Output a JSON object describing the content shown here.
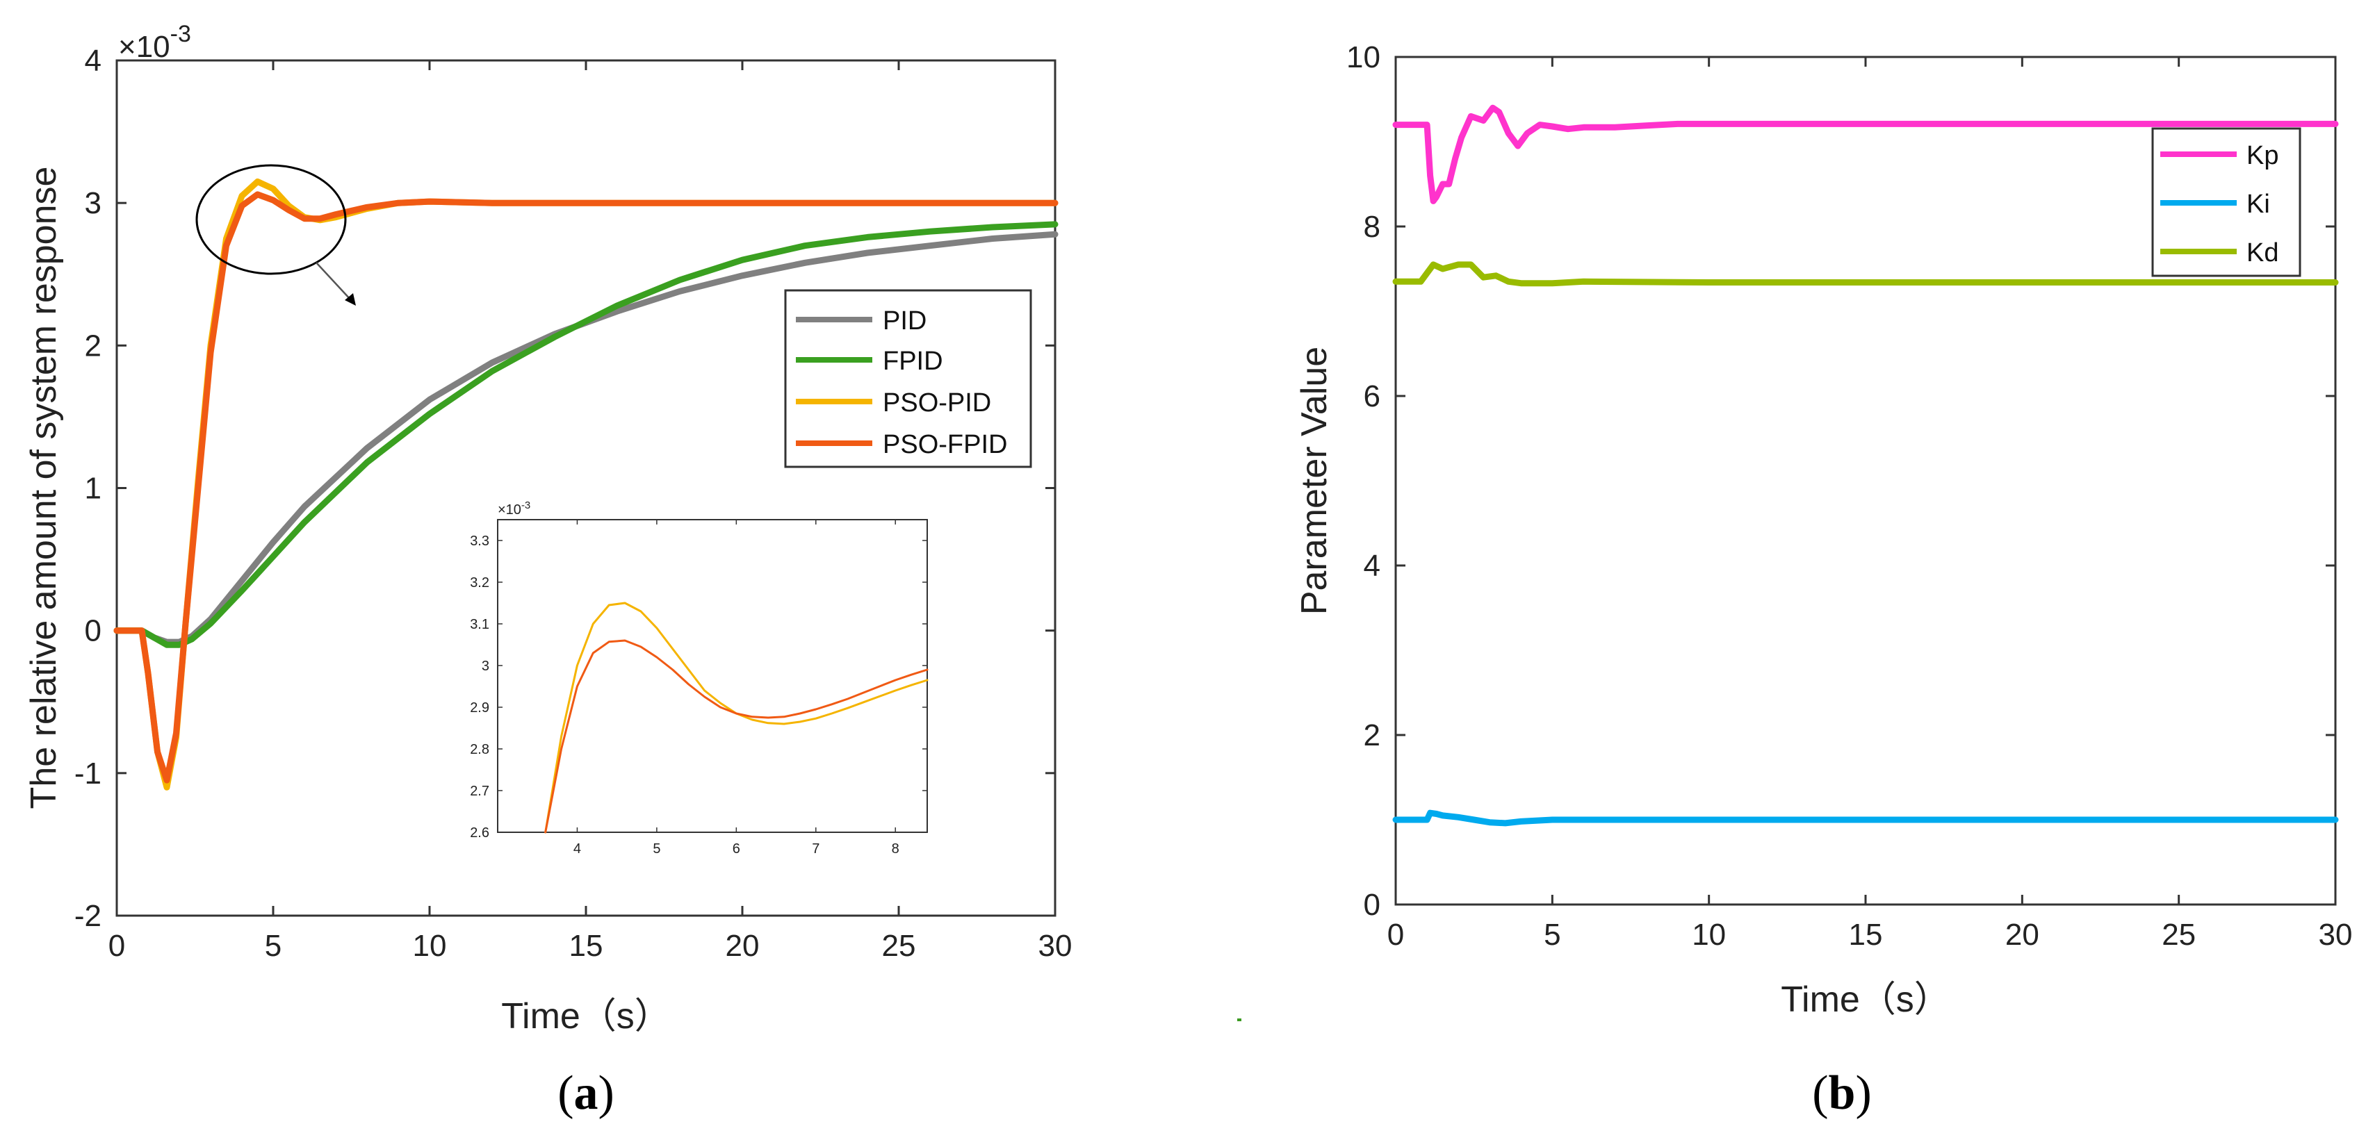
{
  "captions": {
    "a": "a",
    "b": "b"
  },
  "chart_data": [
    {
      "type": "line",
      "panel": "a",
      "xlabel": "Time（s）",
      "ylabel": "The relative amount of system response",
      "exponent_label": "×10",
      "exponent_power": "-3",
      "xlim": [
        0,
        30
      ],
      "ylim": [
        -2,
        4
      ],
      "xticks": [
        0,
        5,
        10,
        15,
        20,
        25,
        30
      ],
      "yticks": [
        -2,
        -1,
        0,
        1,
        2,
        3,
        4
      ],
      "legend": [
        "PID",
        "FPID",
        "PSO-PID",
        "PSO-FPID"
      ],
      "series": [
        {
          "name": "PID",
          "color": "#808080",
          "x": [
            0,
            0.8,
            1.2,
            1.6,
            2.0,
            2.4,
            3,
            4,
            5,
            6,
            8,
            10,
            12,
            14,
            16,
            18,
            20,
            22,
            24,
            26,
            28,
            30
          ],
          "y": [
            0,
            0,
            -0.05,
            -0.08,
            -0.08,
            -0.04,
            0.08,
            0.35,
            0.62,
            0.87,
            1.28,
            1.62,
            1.88,
            2.08,
            2.24,
            2.38,
            2.49,
            2.58,
            2.65,
            2.7,
            2.75,
            2.78
          ]
        },
        {
          "name": "FPID",
          "color": "#3aa020",
          "x": [
            0,
            0.8,
            1.2,
            1.6,
            2.0,
            2.4,
            3,
            4,
            5,
            6,
            8,
            10,
            12,
            14,
            16,
            18,
            20,
            22,
            24,
            26,
            28,
            30
          ],
          "y": [
            0,
            0,
            -0.05,
            -0.1,
            -0.1,
            -0.06,
            0.05,
            0.28,
            0.52,
            0.76,
            1.18,
            1.52,
            1.82,
            2.06,
            2.28,
            2.46,
            2.6,
            2.7,
            2.76,
            2.8,
            2.83,
            2.85
          ]
        },
        {
          "name": "PSO-PID",
          "color": "#f5b400",
          "x": [
            0,
            0.8,
            1.0,
            1.3,
            1.6,
            1.9,
            2.2,
            2.6,
            3.0,
            3.5,
            4.0,
            4.5,
            5.0,
            5.5,
            6.0,
            6.5,
            7.0,
            8.0,
            9.0,
            10,
            12,
            15,
            20,
            25,
            30
          ],
          "y": [
            0,
            0,
            -0.3,
            -0.85,
            -1.1,
            -0.75,
            0.05,
            1.05,
            2.0,
            2.75,
            3.05,
            3.15,
            3.1,
            2.98,
            2.9,
            2.88,
            2.9,
            2.96,
            3.0,
            3.01,
            3.0,
            3.0,
            3.0,
            3.0,
            3.0
          ]
        },
        {
          "name": "PSO-FPID",
          "color": "#f05a14",
          "x": [
            0,
            0.8,
            1.0,
            1.3,
            1.6,
            1.9,
            2.2,
            2.6,
            3.0,
            3.5,
            4.0,
            4.5,
            5.0,
            5.5,
            6.0,
            6.5,
            7.0,
            8.0,
            9.0,
            10,
            12,
            15,
            20,
            25,
            30
          ],
          "y": [
            0,
            0,
            -0.3,
            -0.85,
            -1.05,
            -0.72,
            0.05,
            1.0,
            1.95,
            2.7,
            2.98,
            3.06,
            3.02,
            2.95,
            2.89,
            2.89,
            2.92,
            2.97,
            3.0,
            3.01,
            3.0,
            3.0,
            3.0,
            3.0,
            3.0
          ]
        }
      ],
      "inset": {
        "exponent_label": "×10",
        "exponent_power": "-3",
        "xlim": [
          3.0,
          8.4
        ],
        "ylim": [
          2.6,
          3.35
        ],
        "xticks": [
          4,
          5,
          6,
          7,
          8
        ],
        "yticks": [
          2.6,
          2.7,
          2.8,
          2.9,
          3.0,
          3.1,
          3.2,
          3.3
        ],
        "ytick_labels": [
          "2.6",
          "2.7",
          "2.8",
          "2.9",
          "3",
          "3.1",
          "3.2",
          "3.3"
        ],
        "series": [
          {
            "name": "PSO-PID",
            "color": "#f5b400",
            "x": [
              3.6,
              3.8,
              4.0,
              4.2,
              4.4,
              4.6,
              4.8,
              5.0,
              5.2,
              5.4,
              5.6,
              5.8,
              6.0,
              6.2,
              6.4,
              6.6,
              6.8,
              7.0,
              7.2,
              7.4,
              7.6,
              7.8,
              8.0,
              8.2,
              8.4
            ],
            "y": [
              2.6,
              2.83,
              3.0,
              3.1,
              3.145,
              3.15,
              3.13,
              3.09,
              3.04,
              2.99,
              2.94,
              2.91,
              2.885,
              2.87,
              2.862,
              2.86,
              2.865,
              2.873,
              2.885,
              2.898,
              2.912,
              2.926,
              2.94,
              2.953,
              2.965
            ]
          },
          {
            "name": "PSO-FPID",
            "color": "#f05a14",
            "x": [
              3.6,
              3.8,
              4.0,
              4.2,
              4.4,
              4.6,
              4.8,
              5.0,
              5.2,
              5.4,
              5.6,
              5.8,
              6.0,
              6.2,
              6.4,
              6.6,
              6.8,
              7.0,
              7.2,
              7.4,
              7.6,
              7.8,
              8.0,
              8.2,
              8.4
            ],
            "y": [
              2.6,
              2.8,
              2.95,
              3.03,
              3.057,
              3.06,
              3.045,
              3.02,
              2.99,
              2.955,
              2.925,
              2.9,
              2.885,
              2.877,
              2.875,
              2.877,
              2.885,
              2.895,
              2.907,
              2.92,
              2.935,
              2.95,
              2.965,
              2.978,
              2.99
            ]
          }
        ]
      }
    },
    {
      "type": "line",
      "panel": "b",
      "xlabel": "Time（s）",
      "ylabel": "Parameter Value",
      "xlim": [
        0,
        30
      ],
      "ylim": [
        0,
        10
      ],
      "xticks": [
        0,
        5,
        10,
        15,
        20,
        25,
        30
      ],
      "yticks": [
        0,
        2,
        4,
        6,
        8,
        10
      ],
      "legend": [
        "Kp",
        "Ki",
        "Kd"
      ],
      "series": [
        {
          "name": "Kp",
          "color": "#ff33cc",
          "x": [
            0,
            1.0,
            1.1,
            1.2,
            1.3,
            1.5,
            1.7,
            1.9,
            2.1,
            2.4,
            2.8,
            3.1,
            3.3,
            3.6,
            3.9,
            4.2,
            4.6,
            5.0,
            5.5,
            6,
            7,
            8,
            9,
            10,
            15,
            20,
            25,
            30
          ],
          "y": [
            9.2,
            9.2,
            8.6,
            8.3,
            8.35,
            8.5,
            8.5,
            8.8,
            9.05,
            9.3,
            9.25,
            9.4,
            9.35,
            9.1,
            8.95,
            9.1,
            9.2,
            9.18,
            9.15,
            9.17,
            9.17,
            9.19,
            9.21,
            9.21,
            9.21,
            9.21,
            9.21,
            9.21
          ]
        },
        {
          "name": "Ki",
          "color": "#00aaee",
          "x": [
            0,
            1.0,
            1.1,
            1.3,
            1.5,
            2.0,
            2.5,
            3.0,
            3.5,
            4.0,
            5.0,
            6,
            10,
            15,
            20,
            25,
            30
          ],
          "y": [
            1.0,
            1.0,
            1.08,
            1.07,
            1.05,
            1.03,
            1.0,
            0.97,
            0.96,
            0.98,
            1.0,
            1.0,
            1.0,
            1.0,
            1.0,
            1.0,
            1.0
          ]
        },
        {
          "name": "Kd",
          "color": "#99bb00",
          "x": [
            0,
            0.8,
            1.0,
            1.2,
            1.5,
            2.0,
            2.4,
            2.8,
            3.2,
            3.6,
            4.0,
            5.0,
            6,
            10,
            15,
            20,
            25,
            30
          ],
          "y": [
            7.35,
            7.35,
            7.45,
            7.55,
            7.5,
            7.55,
            7.55,
            7.4,
            7.42,
            7.35,
            7.33,
            7.33,
            7.35,
            7.34,
            7.34,
            7.34,
            7.34,
            7.34
          ]
        }
      ]
    }
  ]
}
